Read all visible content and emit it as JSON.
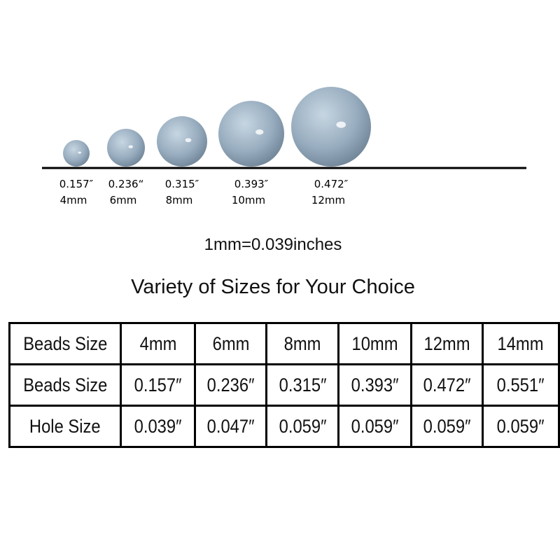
{
  "beads": [
    {
      "inches": "0.157″",
      "mm": "4mm"
    },
    {
      "inches": "0.236“",
      "mm": "6mm"
    },
    {
      "inches": "0.315″",
      "mm": "8mm"
    },
    {
      "inches": "0.393″",
      "mm": "10mm"
    },
    {
      "inches": "0.472″",
      "mm": "12mm"
    }
  ],
  "conversion": "1mm=0.039inches",
  "heading": "Variety of Sizes for Your Choice",
  "table": {
    "rows": [
      [
        "Beads Size",
        "4mm",
        "6mm",
        "8mm",
        "10mm",
        "12mm",
        "14mm"
      ],
      [
        "Beads Size",
        "0.157″",
        "0.236″",
        "0.315″",
        "0.393″",
        "0.472″",
        "0.551″"
      ],
      [
        "Hole Size",
        "0.039″",
        "0.047″",
        "0.059″",
        "0.059″",
        "0.059″",
        "0.059″"
      ]
    ]
  }
}
